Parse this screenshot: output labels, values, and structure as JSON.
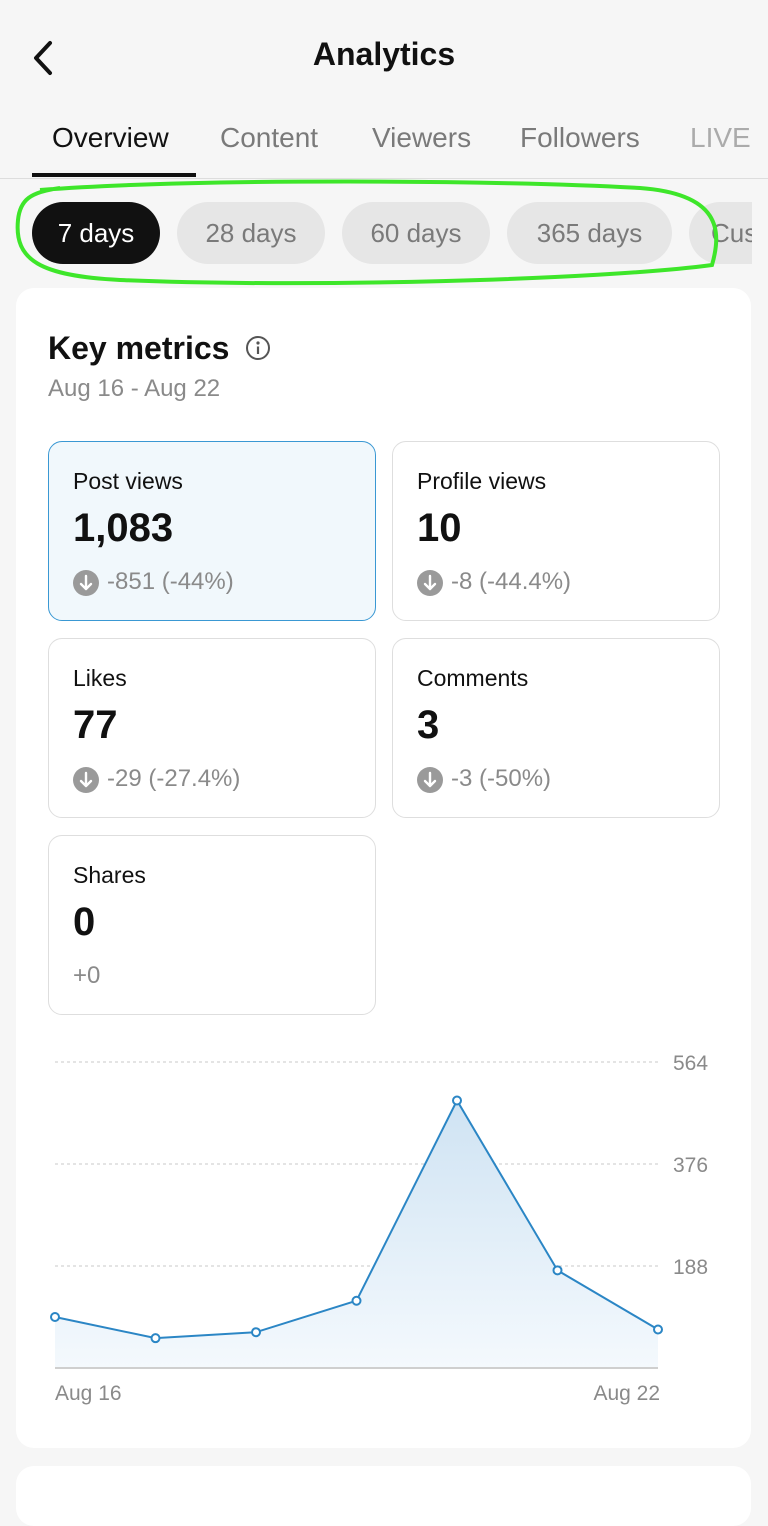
{
  "header": {
    "title": "Analytics"
  },
  "tabs": [
    "Overview",
    "Content",
    "Viewers",
    "Followers",
    "LIVE"
  ],
  "periods": [
    "7 days",
    "28 days",
    "60 days",
    "365 days",
    "Cus"
  ],
  "key_metrics": {
    "title": "Key metrics",
    "date_range": "Aug 16 - Aug 22",
    "metrics": [
      {
        "label": "Post views",
        "value": "1,083",
        "change": "-851 (-44%)"
      },
      {
        "label": "Profile views",
        "value": "10",
        "change": "-8 (-44.4%)"
      },
      {
        "label": "Likes",
        "value": "77",
        "change": "-29 (-27.4%)"
      },
      {
        "label": "Comments",
        "value": "3",
        "change": "-3 (-50%)"
      },
      {
        "label": "Shares",
        "value": "0",
        "change": "+0"
      }
    ]
  },
  "chart_data": {
    "type": "line",
    "categories": [
      "Aug 16",
      null,
      null,
      null,
      null,
      null,
      "Aug 22"
    ],
    "values": [
      94,
      55,
      66,
      124,
      493,
      180,
      71
    ],
    "color": "#2b86c5",
    "ylim": [
      0,
      564
    ],
    "yticks": [
      188,
      376,
      564
    ],
    "grid": true
  }
}
